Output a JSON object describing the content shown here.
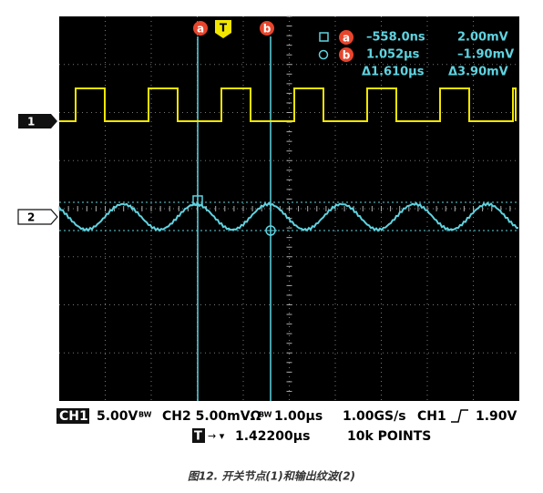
{
  "channel_markers": [
    "1",
    "2"
  ],
  "cursor_labels": {
    "a": "a",
    "trigger": "T",
    "b": "b"
  },
  "readout": [
    {
      "cursor": "a",
      "time": "–558.0ns",
      "volt": "2.00mV"
    },
    {
      "cursor": "b",
      "time": "1.052µs",
      "volt": "–1.90mV"
    },
    {
      "time": "Δ1.610µs",
      "volt": "Δ3.90mV"
    }
  ],
  "status_line": {
    "ch1": "CH1",
    "ch1_scale": "5.00V",
    "ch1_bw": "BW",
    "ch2": "CH2 5.00mVΩ",
    "ch2_bw": "BW",
    "timebase": "1.00µs",
    "rate": "1.00GS/s",
    "trig_source": "CH1",
    "trig_level": "1.90V"
  },
  "trigger_line": {
    "icon": "T",
    "position": "1.42200µs",
    "points": "10k POINTS"
  },
  "caption": "图12. 开关节点(1)和输出纹波(2)"
}
